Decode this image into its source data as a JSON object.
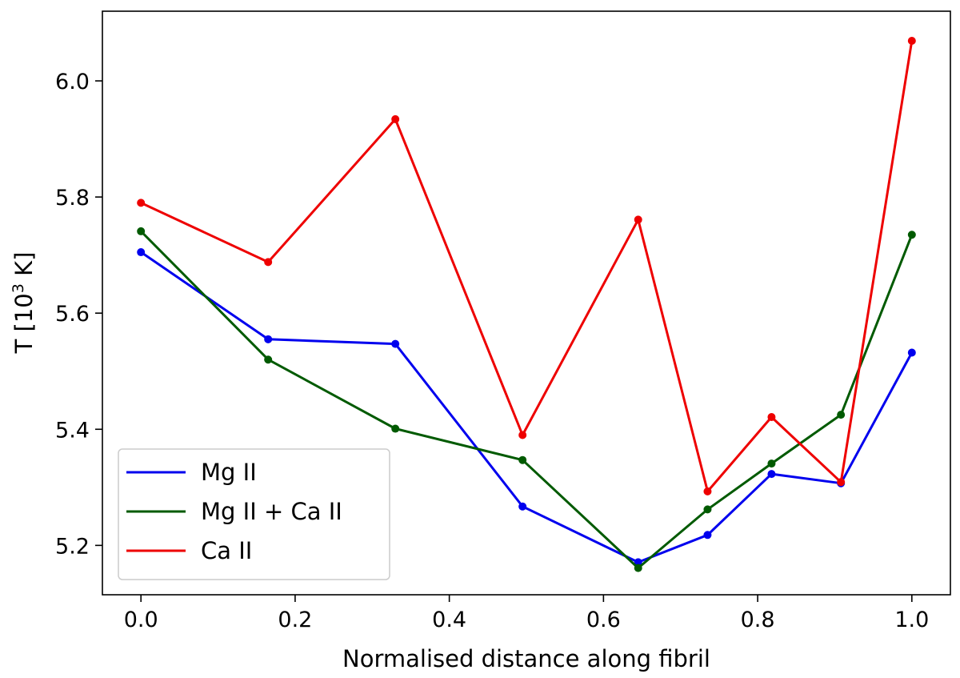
{
  "chart_data": {
    "type": "line",
    "xlabel": "Normalised distance along fibril",
    "ylabel": {
      "prefix": "T [10",
      "superscript": "3",
      "suffix": " K]"
    },
    "xlim": [
      -0.05,
      1.05
    ],
    "ylim": [
      5.115,
      6.12
    ],
    "x_ticks": [
      0.0,
      0.2,
      0.4,
      0.6,
      0.8,
      1.0
    ],
    "x_tick_labels": [
      "0.0",
      "0.2",
      "0.4",
      "0.6",
      "0.8",
      "1.0"
    ],
    "y_ticks": [
      5.2,
      5.4,
      5.6,
      5.8,
      6.0
    ],
    "y_tick_labels": [
      "5.2",
      "5.4",
      "5.6",
      "5.8",
      "6.0"
    ],
    "grid": false,
    "legend_position": "lower-left",
    "x": [
      0.0,
      0.165,
      0.33,
      0.495,
      0.645,
      0.735,
      0.818,
      0.908,
      1.0
    ],
    "series": [
      {
        "name": "Mg II",
        "color": "#0000ee",
        "values": [
          5.705,
          5.555,
          5.547,
          5.267,
          5.171,
          5.218,
          5.323,
          5.307,
          5.532
        ]
      },
      {
        "name": "Mg II + Ca II",
        "color": "#005a00",
        "values": [
          5.741,
          5.52,
          5.401,
          5.347,
          5.161,
          5.262,
          5.341,
          5.425,
          5.735
        ]
      },
      {
        "name": "Ca II",
        "color": "#ee0000",
        "values": [
          5.79,
          5.688,
          5.934,
          5.39,
          5.761,
          5.293,
          5.421,
          5.309,
          6.069
        ]
      }
    ]
  }
}
